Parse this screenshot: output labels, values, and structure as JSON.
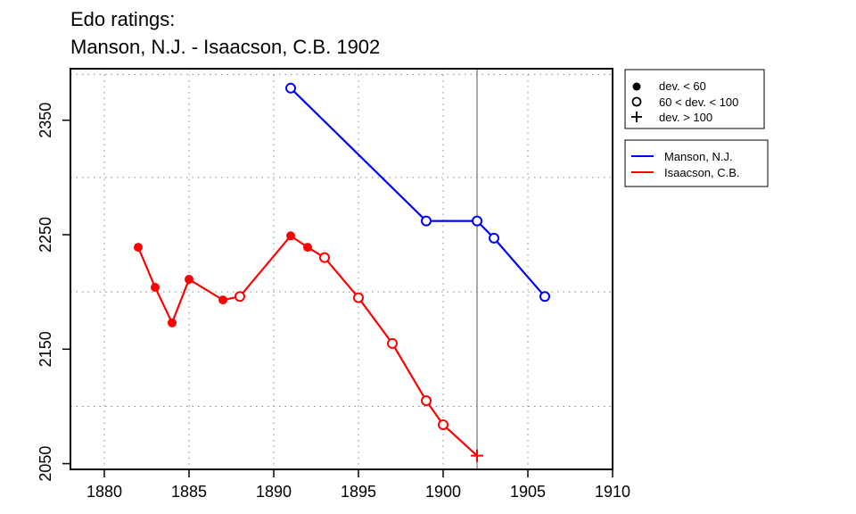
{
  "chart_data": {
    "type": "line",
    "title": "Edo ratings:",
    "subtitle": "Manson, N.J. - Isaacson, C.B. 1902",
    "xlabel": "",
    "ylabel": "",
    "xlim": [
      1878,
      1910
    ],
    "ylim": [
      2045,
      2395
    ],
    "xticks": [
      1880,
      1885,
      1890,
      1895,
      1900,
      1905,
      1910
    ],
    "yticks": [
      2050,
      2150,
      2250,
      2350
    ],
    "x_gridlines": [
      1880,
      1885,
      1890,
      1895,
      1900,
      1905
    ],
    "y_gridlines": [
      2100,
      2200,
      2300,
      2390
    ],
    "grid": true,
    "reference_line_x": 1902,
    "legend_markers": [
      {
        "symbol": "filled-circle",
        "label": "dev. < 60"
      },
      {
        "symbol": "open-circle",
        "label": "60 < dev. < 100"
      },
      {
        "symbol": "plus",
        "label": "dev. > 100"
      }
    ],
    "legend_series_position": "top-right outside plot",
    "series": [
      {
        "name": "Manson, N.J.",
        "color": "#0000ff",
        "points": [
          {
            "x": 1891,
            "y": 2378,
            "marker": "open-circle"
          },
          {
            "x": 1899,
            "y": 2262,
            "marker": "open-circle"
          },
          {
            "x": 1902,
            "y": 2262,
            "marker": "open-circle"
          },
          {
            "x": 1903,
            "y": 2247,
            "marker": "open-circle"
          },
          {
            "x": 1906,
            "y": 2196,
            "marker": "open-circle"
          }
        ]
      },
      {
        "name": "Isaacson, C.B.",
        "color": "#ff0000",
        "points": [
          {
            "x": 1882,
            "y": 2239,
            "marker": "filled-circle"
          },
          {
            "x": 1883,
            "y": 2204,
            "marker": "filled-circle"
          },
          {
            "x": 1884,
            "y": 2173,
            "marker": "filled-circle"
          },
          {
            "x": 1885,
            "y": 2211,
            "marker": "filled-circle"
          },
          {
            "x": 1887,
            "y": 2193,
            "marker": "filled-circle"
          },
          {
            "x": 1888,
            "y": 2196,
            "marker": "open-circle"
          },
          {
            "x": 1891,
            "y": 2249,
            "marker": "filled-circle"
          },
          {
            "x": 1892,
            "y": 2239,
            "marker": "filled-circle"
          },
          {
            "x": 1893,
            "y": 2230,
            "marker": "open-circle"
          },
          {
            "x": 1895,
            "y": 2195,
            "marker": "open-circle"
          },
          {
            "x": 1897,
            "y": 2155,
            "marker": "open-circle"
          },
          {
            "x": 1899,
            "y": 2105,
            "marker": "open-circle"
          },
          {
            "x": 1900,
            "y": 2084,
            "marker": "open-circle"
          },
          {
            "x": 1902,
            "y": 2057,
            "marker": "plus"
          }
        ]
      }
    ]
  }
}
